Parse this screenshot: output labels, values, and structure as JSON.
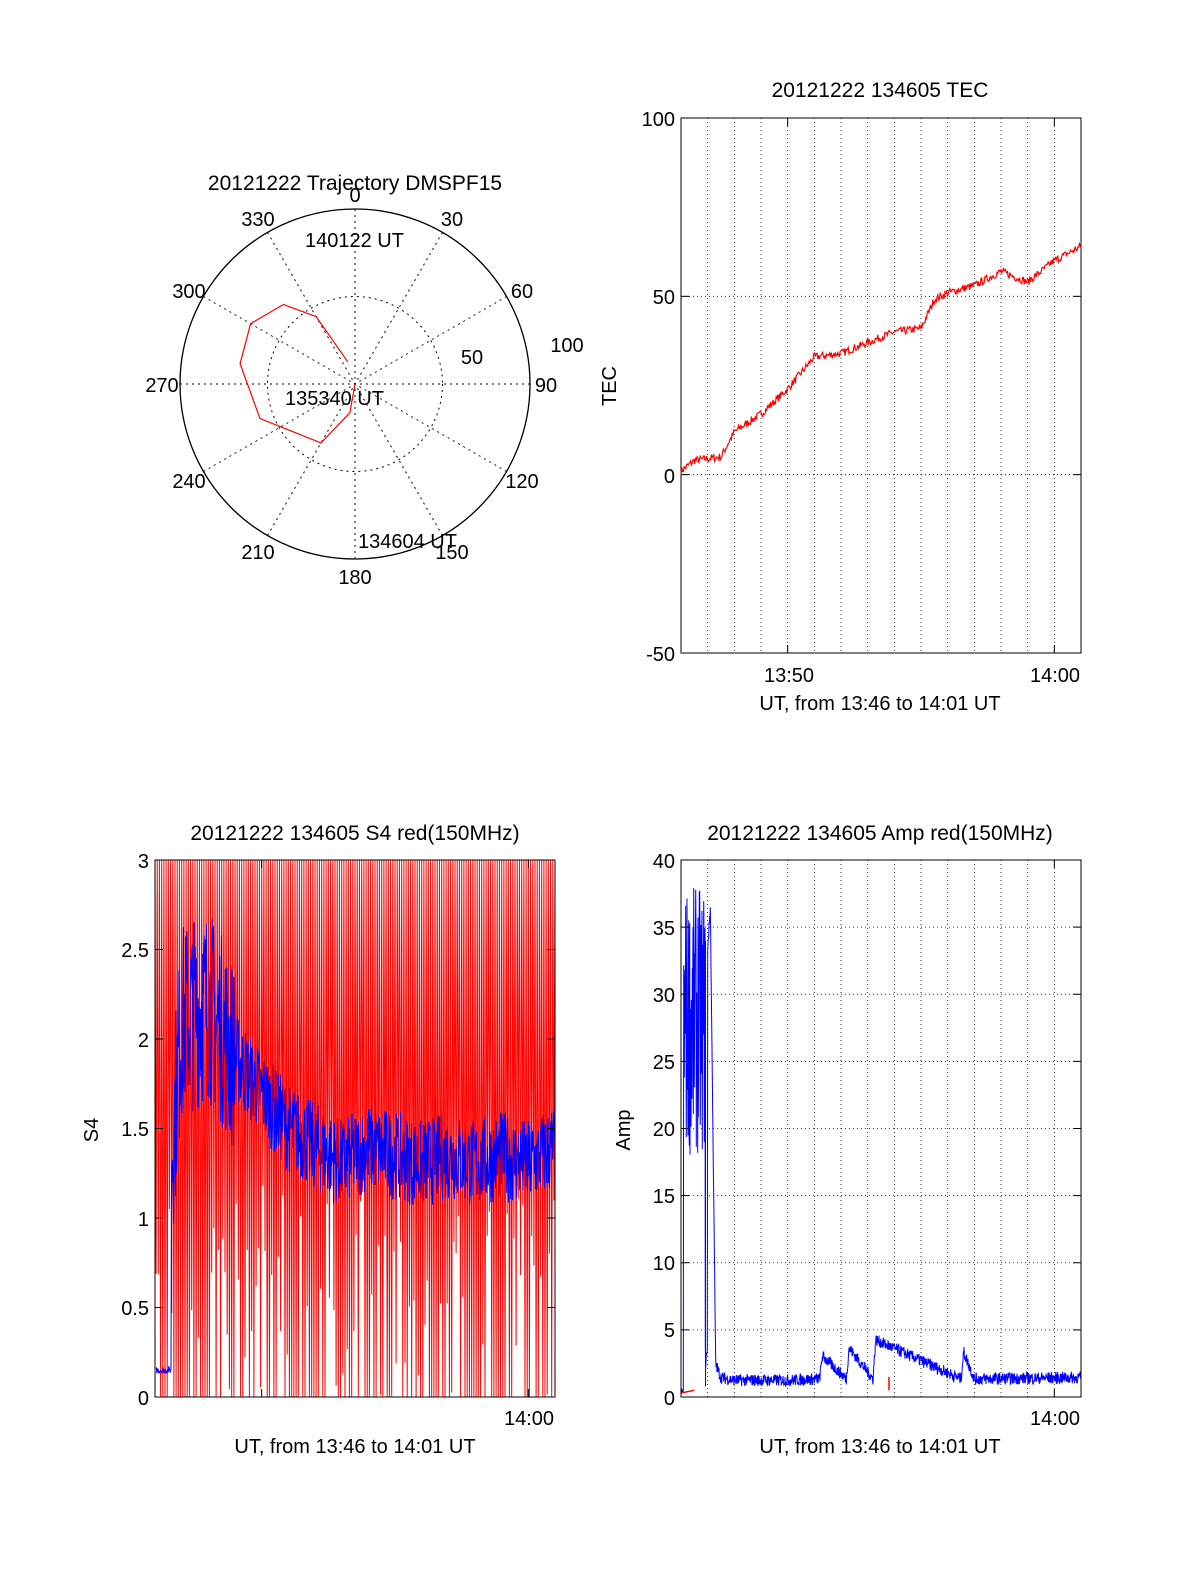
{
  "colors": {
    "red": "#ff0000",
    "blue": "#0000ff",
    "axis": "#000000",
    "grid": "#000000"
  },
  "chart_data": [
    {
      "type": "polar",
      "title": "20121222 Trajectory DMSPF15",
      "azimuth_labels": [
        "0",
        "30",
        "60",
        "90",
        "120",
        "150",
        "180",
        "210",
        "240",
        "270",
        "300",
        "330"
      ],
      "radial_labels": [
        "50",
        "100"
      ],
      "grid": true,
      "series": [
        {
          "color": "red",
          "points": [
            [
              180,
              90
            ],
            [
              190,
              75
            ],
            [
              210,
              55
            ],
            [
              250,
              38
            ],
            [
              280,
              30
            ],
            [
              300,
              28
            ],
            [
              318,
              35
            ],
            [
              330,
              50
            ],
            [
              342,
              78
            ]
          ]
        }
      ],
      "annotations": [
        {
          "text": "140122 UT",
          "azimuth": 342,
          "elevation": 78
        },
        {
          "text": "135340 UT",
          "azimuth": 150,
          "elevation": 88
        },
        {
          "text": "134604 UT",
          "azimuth": 175,
          "elevation": 2
        }
      ]
    },
    {
      "type": "line",
      "title": "20121222 134605 TEC",
      "ylabel": "TEC",
      "xlabel": "UT, from 13:46 to 14:01 UT",
      "ylim": [
        -50,
        100
      ],
      "yticks": [
        "100",
        "50",
        "0",
        "-50"
      ],
      "xticks": [
        "13:50",
        "14:00"
      ],
      "grid": true,
      "series": [
        {
          "color": "red",
          "x": [
            0,
            0.5,
            1.5,
            2.0,
            3.0,
            4.0,
            5.0,
            6.0,
            7.0,
            8.0,
            9.0,
            9.5,
            10.0,
            11.0,
            12.0,
            13.0,
            14.0,
            15.0
          ],
          "y": [
            1,
            4,
            5,
            12,
            17,
            24,
            33,
            34,
            37,
            40,
            41,
            49,
            51,
            53,
            57,
            54,
            60,
            64
          ]
        }
      ]
    },
    {
      "type": "line",
      "title": "20121222 134605 S4 red(150MHz)",
      "ylabel": "S4",
      "xlabel": "UT, from 13:46 to 14:01 UT",
      "ylim": [
        0,
        3
      ],
      "yticks": [
        "3",
        "2.5",
        "2",
        "1.5",
        "1",
        "0.5",
        "0"
      ],
      "xticks": [
        "14:00"
      ],
      "grid": false,
      "series": [
        {
          "color": "blue",
          "x": [
            0,
            1,
            2,
            3,
            4,
            5,
            6,
            7,
            8,
            9,
            10,
            11,
            12,
            13,
            14,
            15
          ],
          "y": [
            0.15,
            2.1,
            2.2,
            1.9,
            1.7,
            1.5,
            1.4,
            1.3,
            1.4,
            1.35,
            1.3,
            1.35,
            1.3,
            1.35,
            1.3,
            1.4
          ]
        },
        {
          "color": "red",
          "note_values": "rapid oscillation between 0 and 3 across the full interval"
        }
      ]
    },
    {
      "type": "line",
      "title": "20121222 134605 Amp red(150MHz)",
      "ylabel": "Amp",
      "xlabel": "UT, from 13:46 to 14:01 UT",
      "ylim": [
        0,
        40
      ],
      "yticks": [
        "40",
        "35",
        "30",
        "25",
        "20",
        "15",
        "10",
        "5",
        "0"
      ],
      "xticks": [
        "14:00"
      ],
      "grid": true,
      "series": [
        {
          "color": "blue",
          "x": [
            0,
            0.3,
            0.6,
            0.9,
            1.1,
            1.3,
            1.5,
            2,
            4,
            5.2,
            5.3,
            6.2,
            6.3,
            7.2,
            7.3,
            10.5,
            10.6,
            11,
            15
          ],
          "y": [
            0.5,
            37,
            35,
            30,
            36,
            2,
            1,
            0.8,
            0.8,
            0.9,
            2.6,
            0.9,
            3.2,
            0.9,
            3.8,
            0.9,
            2.9,
            0.9,
            1
          ]
        },
        {
          "color": "red",
          "x": [
            0,
            0.5,
            7.8
          ],
          "y": [
            0.3,
            0.5,
            1.5
          ]
        }
      ]
    }
  ]
}
